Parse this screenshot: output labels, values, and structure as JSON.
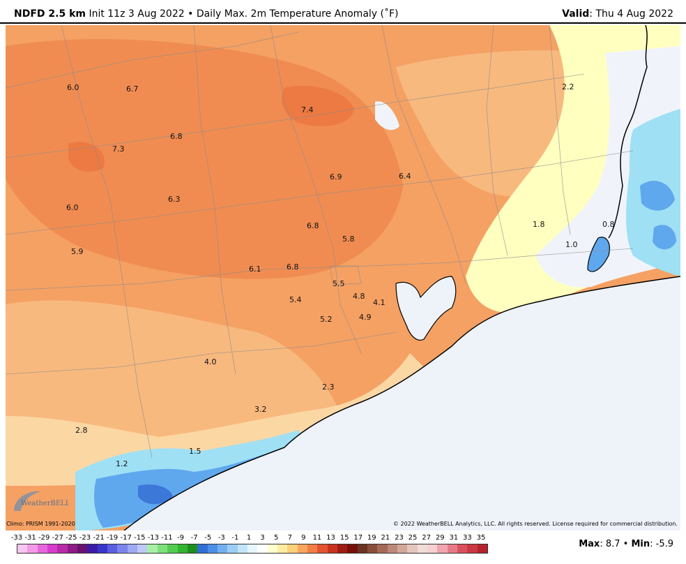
{
  "header": {
    "model": "NDFD 2.5 km",
    "subtitle": "Init 11z 3 Aug 2022 • Daily Max. 2m Temperature Anomaly (˚F)",
    "valid_label": "Valid",
    "valid_value": ": Thu 4 Aug 2022"
  },
  "map": {
    "values": [
      {
        "id": "v1",
        "text": "6.0"
      },
      {
        "id": "v2",
        "text": "6.7"
      },
      {
        "id": "v3",
        "text": "7.4"
      },
      {
        "id": "v4",
        "text": "2.2"
      },
      {
        "id": "v5",
        "text": "6.8"
      },
      {
        "id": "v6",
        "text": "7.3"
      },
      {
        "id": "v7",
        "text": "6.9"
      },
      {
        "id": "v8",
        "text": "6.4"
      },
      {
        "id": "v9",
        "text": "6.3"
      },
      {
        "id": "v10",
        "text": "6.0"
      },
      {
        "id": "v11",
        "text": "6.8"
      },
      {
        "id": "v12",
        "text": "1.8"
      },
      {
        "id": "v13",
        "text": "0.8"
      },
      {
        "id": "v14",
        "text": "5.8"
      },
      {
        "id": "v15",
        "text": "1.0"
      },
      {
        "id": "v16",
        "text": "5.9"
      },
      {
        "id": "v17",
        "text": "6.1"
      },
      {
        "id": "v18",
        "text": "6.8"
      },
      {
        "id": "v19",
        "text": "5.5"
      },
      {
        "id": "v20",
        "text": "4.8"
      },
      {
        "id": "v21",
        "text": "5.4"
      },
      {
        "id": "v22",
        "text": "4.1"
      },
      {
        "id": "v23",
        "text": "5.2"
      },
      {
        "id": "v24",
        "text": "4.9"
      },
      {
        "id": "v25",
        "text": "4.0"
      },
      {
        "id": "v26",
        "text": "2.3"
      },
      {
        "id": "v27",
        "text": "3.2"
      },
      {
        "id": "v28",
        "text": "2.8"
      },
      {
        "id": "v29",
        "text": "1.5"
      },
      {
        "id": "v30",
        "text": "1.2"
      }
    ],
    "colors": {
      "orange_dark": "#f08c52",
      "orange": "#f5a164",
      "orange_light": "#f8b97f",
      "peach": "#fbd7a4",
      "yellow": "#ffffc0",
      "white": "#f0f4fa",
      "blue_light": "#9fe0f4",
      "blue": "#5fa8ee",
      "blue_dark": "#3c78d8",
      "water": "#eef2f9"
    }
  },
  "footer": {
    "climo": "Climo: PRISM 1991-2020",
    "copyright": "© 2022 WeatherBELL Analytics, LLC. All rights reserved. License required for commercial distribution.",
    "logo_text": "WeatherBELL",
    "max_label": "Max",
    "max_value": ": 8.7 • ",
    "min_label": "Min",
    "min_value": ": -5.9"
  },
  "legend": {
    "ticks": [
      "-33",
      "-31",
      "-29",
      "-27",
      "-25",
      "-23",
      "-21",
      "-19",
      "-17",
      "-15",
      "-13",
      "-11",
      "-9",
      "-7",
      "-5",
      "-3",
      "-1",
      "1",
      "3",
      "5",
      "7",
      "9",
      "11",
      "13",
      "15",
      "17",
      "19",
      "21",
      "23",
      "25",
      "27",
      "29",
      "31",
      "33",
      "35"
    ],
    "colors": [
      "#f7c6f0",
      "#f29ae8",
      "#e866dc",
      "#d93ccd",
      "#b82aa6",
      "#8e1a86",
      "#6a1270",
      "#3b1ba8",
      "#3a35c9",
      "#5a5ee0",
      "#7c84ec",
      "#9eaaf2",
      "#bfc9f6",
      "#a7f0a5",
      "#7ee07b",
      "#52cc50",
      "#31b42f",
      "#1e8f1e",
      "#2f6fd6",
      "#4c8fe8",
      "#73aff0",
      "#9bcdf6",
      "#c2e5fa",
      "#e6f6fd",
      "#ffffff",
      "#ffffd0",
      "#ffeca0",
      "#fdd07a",
      "#f9a55e",
      "#f27d44",
      "#e25430",
      "#c8331f",
      "#a01c13",
      "#761008",
      "#6a3324",
      "#8a4d3a",
      "#a56a57",
      "#bc8878",
      "#d2a89b",
      "#e5c6bd",
      "#f1dcd6",
      "#f6d0d4",
      "#f0a5ae",
      "#e57a86",
      "#d9505f",
      "#c93843",
      "#b5222c"
    ]
  }
}
